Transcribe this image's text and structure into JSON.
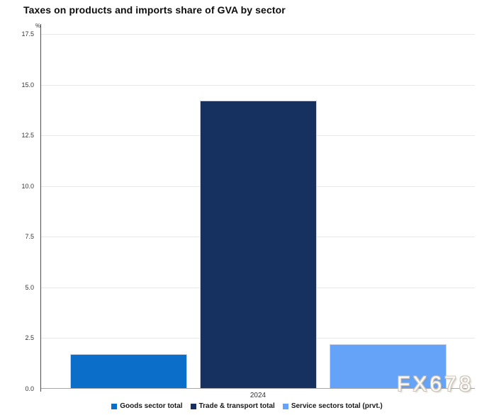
{
  "title": "Taxes on products and imports share of GVA by sector",
  "watermark": "FX678",
  "chart_data": {
    "type": "bar",
    "title": "Taxes on products and imports share of GVA by sector",
    "categories": [
      "2024"
    ],
    "series": [
      {
        "name": "Goods sector total",
        "values": [
          1.7
        ],
        "color": "#0b6ec9"
      },
      {
        "name": "Trade & transport total",
        "values": [
          14.2
        ],
        "color": "#16305f"
      },
      {
        "name": "Service sectors total (prvt.)",
        "values": [
          2.2
        ],
        "color": "#64a3f7"
      }
    ],
    "xlabel": "",
    "ylabel": "%",
    "ylim": [
      0,
      17.5
    ],
    "yticks": [
      "0.0",
      "2.5",
      "5.0",
      "7.5",
      "10.0",
      "12.5",
      "15.0",
      "17.5"
    ],
    "grid": true,
    "legend_position": "bottom"
  }
}
